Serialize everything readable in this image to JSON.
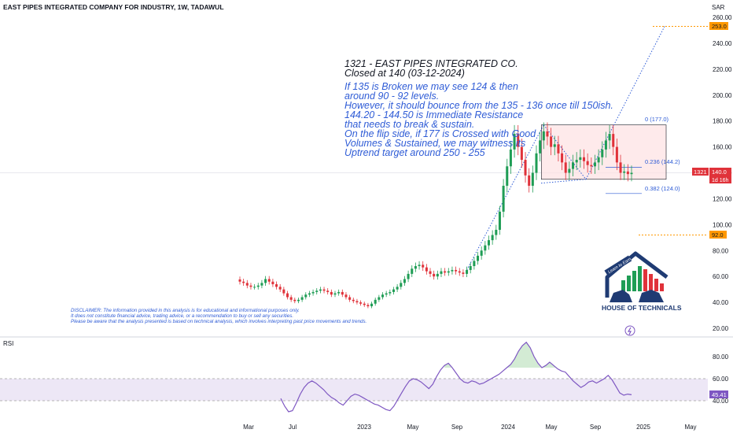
{
  "header": {
    "title": "EAST PIPES INTEGRATED COMPANY FOR INDUSTRY, 1W, TADAWUL",
    "currency": "SAR"
  },
  "colors": {
    "up": "#1f9d55",
    "down": "#e0323a",
    "rsi_line": "#7e57c2",
    "rsi_band": "#ede7f6",
    "annotation_blue": "#2f5cd6",
    "orange": "#ff9800",
    "box_fill": "#fde1e3"
  },
  "annotation": {
    "heading": [
      "1321 - EAST PIPES INTEGRATED CO.",
      "Closed at 140 (03-12-2024)"
    ],
    "body": [
      "If 135 is Broken we may see 124 & then",
      "around 90 - 92 levels.",
      "However, it should bounce from the 135 - 136 once till 150ish.",
      "144.20 - 144.50 is Immediate Resistance",
      "that needs to break & sustain.",
      "On the flip side, if 177 is Crossed with Good",
      "Volumes & Sustained, we may witness its",
      "Uptrend target around 250 - 255"
    ]
  },
  "disclaimer": [
    "DISCLAIMER: The information provided in this analysis is for educational and informational purposes only.",
    "It does not constitute financial advice, trading advice, or a recommendation to buy or sell any securities.",
    "Please be aware that the analysis presented is based on technical analysis, which involves interpreting past price movements and trends."
  ],
  "logo": {
    "banner": "Learn to Earn",
    "name": "HOUSE OF TECHNICALS"
  },
  "price_tag": {
    "symbol": "1321",
    "price": "140.0",
    "countdown": "1d 16h"
  },
  "levels": [
    {
      "label": "253.0",
      "value": 253
    },
    {
      "label": "92.0",
      "value": 92
    }
  ],
  "fib_labels": [
    "0 (177.0)",
    "0.236 (144.2)",
    "0.382 (124.0)"
  ],
  "rsi": {
    "label": "RSI",
    "value_label": "45.41"
  },
  "chart_data": [
    {
      "type": "candlestick",
      "title": "EAST PIPES INTEGRATED COMPANY FOR INDUSTRY, 1W, TADAWUL",
      "ylabel": "SAR",
      "y_ticks": [
        20,
        40,
        60,
        80,
        100,
        120,
        140,
        160,
        180,
        200,
        220,
        240,
        260
      ],
      "y_tick_labels": [
        "20.00",
        "40.00",
        "60.00",
        "80.00",
        "100.00",
        "120.00",
        "140.00",
        "160.00",
        "180.00",
        "200.00",
        "220.00",
        "240.00",
        "260.00"
      ],
      "ylim": [
        15,
        263
      ],
      "x_tick_labels": [
        "Mar",
        "Jul",
        "2023",
        "May",
        "Sep",
        "2024",
        "May",
        "Sep",
        "2025",
        "May"
      ],
      "last_close": 140.0,
      "closes": [
        56,
        55,
        53,
        52,
        52,
        53,
        55,
        58,
        56,
        54,
        52,
        50,
        47,
        44,
        42,
        41,
        42,
        44,
        46,
        47,
        48,
        49,
        50,
        49,
        48,
        46,
        47,
        48,
        46,
        44,
        42,
        41,
        40,
        39,
        38,
        37,
        39,
        42,
        44,
        46,
        47,
        48,
        50,
        52,
        55,
        58,
        62,
        66,
        68,
        69,
        67,
        64,
        62,
        60,
        62,
        64,
        63,
        64,
        65,
        64,
        63,
        62,
        65,
        68,
        72,
        76,
        80,
        84,
        88,
        92,
        96,
        110,
        130,
        145,
        158,
        170,
        160,
        150,
        138,
        130,
        140,
        155,
        165,
        172,
        168,
        160,
        162,
        155,
        148,
        140,
        143,
        148,
        150,
        152,
        149,
        146,
        145,
        148,
        152,
        158,
        165,
        170,
        160,
        148,
        140,
        141,
        139,
        140
      ],
      "levels": [
        253,
        92
      ],
      "fibonacci": [
        {
          "ratio": "0",
          "value": 177.0
        },
        {
          "ratio": "0.236",
          "value": 144.2
        },
        {
          "ratio": "0.382",
          "value": 124.0
        }
      ],
      "box_range": [
        135,
        177
      ],
      "trendline_target": 253
    },
    {
      "type": "line",
      "title": "RSI",
      "y_ticks": [
        40,
        60,
        80
      ],
      "y_tick_labels": [
        "40.00",
        "60.00",
        "80.00"
      ],
      "band": [
        40,
        60
      ],
      "last_value": 45.41,
      "values": [
        42,
        35,
        30,
        31,
        38,
        46,
        52,
        56,
        58,
        56,
        53,
        50,
        46,
        43,
        41,
        38,
        36,
        40,
        44,
        46,
        45,
        43,
        41,
        39,
        37,
        36,
        34,
        32,
        31,
        35,
        41,
        47,
        53,
        58,
        60,
        59,
        57,
        54,
        51,
        55,
        62,
        68,
        72,
        74,
        70,
        65,
        60,
        57,
        56,
        58,
        57,
        55,
        56,
        58,
        60,
        62,
        64,
        67,
        70,
        73,
        78,
        85,
        90,
        93,
        88,
        80,
        74,
        70,
        72,
        75,
        72,
        69,
        67,
        66,
        62,
        58,
        55,
        52,
        54,
        57,
        58,
        56,
        58,
        60,
        63,
        59,
        53,
        47,
        45,
        46,
        45.41
      ]
    }
  ]
}
